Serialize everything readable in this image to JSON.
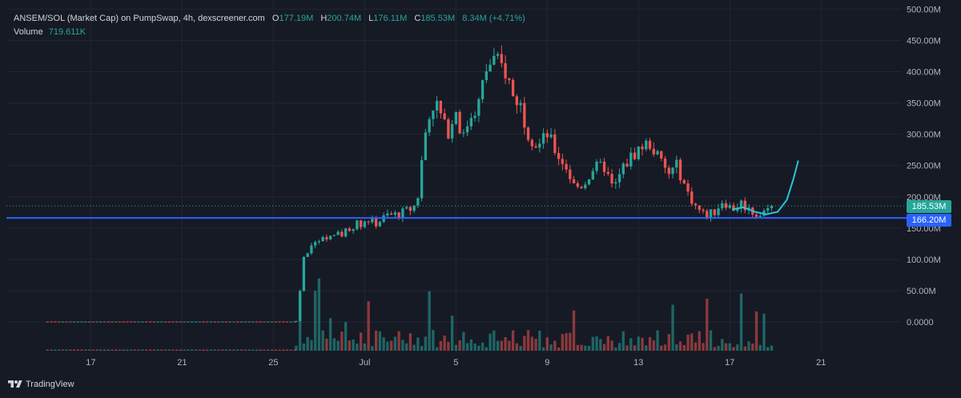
{
  "header": {
    "symbol": "ANSEM/SOL (Market Cap) on PumpSwap, 4h, dexscreener.com",
    "o_key": "O",
    "o_val": "177.19M",
    "h_key": "H",
    "h_val": "200.74M",
    "l_key": "L",
    "l_val": "176.11M",
    "c_key": "C",
    "c_val": "185.53M",
    "change": "8.34M (+4.71%)",
    "volume_key": "Volume",
    "volume_val": "719.611K"
  },
  "brand": "TradingView",
  "labels": {
    "current_price": "185.53M",
    "line_price": "166.20M"
  },
  "colors": {
    "background": "#161a25",
    "up": "#26a69a",
    "down": "#ef5350",
    "hline": "#2962ff",
    "projection": "#26c6da",
    "grid": "#232632",
    "axis_text": "#b2b5be"
  },
  "chart_data": {
    "type": "candlestick",
    "interval": "4h",
    "y_axis": {
      "ticks": [
        0,
        50,
        100,
        150,
        200,
        250,
        300,
        350,
        400,
        450,
        500
      ],
      "tick_labels": [
        "0.0000",
        "50.00M",
        "100.00M",
        "150.00M",
        "200.00M",
        "250.00M",
        "300.00M",
        "350.00M",
        "400.00M",
        "450.00M",
        "500.00M"
      ],
      "unit": "M",
      "range": [
        0,
        500
      ]
    },
    "x_axis": {
      "ticks": [
        {
          "day": 17,
          "label": "17"
        },
        {
          "day": 21,
          "label": "21"
        },
        {
          "day": 25,
          "label": "25"
        },
        {
          "day": 29,
          "label": "Jul"
        },
        {
          "day": 33,
          "label": "5"
        },
        {
          "day": 37,
          "label": "9"
        },
        {
          "day": 41,
          "label": "13"
        },
        {
          "day": 45,
          "label": "17"
        },
        {
          "day": 49,
          "label": "21"
        }
      ],
      "range": [
        13.3,
        52.5
      ]
    },
    "horizontal_line": 166.2,
    "current_price": 185.53,
    "price_path": [
      [
        26.0,
        0
      ],
      [
        26.3,
        100
      ],
      [
        26.6,
        120
      ],
      [
        27.0,
        130
      ],
      [
        27.5,
        135
      ],
      [
        28.0,
        140
      ],
      [
        28.5,
        155
      ],
      [
        29.0,
        160
      ],
      [
        29.5,
        158
      ],
      [
        30.0,
        170
      ],
      [
        30.5,
        172
      ],
      [
        31.0,
        180
      ],
      [
        31.3,
        190
      ],
      [
        31.6,
        290
      ],
      [
        31.9,
        350
      ],
      [
        32.2,
        345
      ],
      [
        32.6,
        300
      ],
      [
        33.0,
        340
      ],
      [
        33.3,
        290
      ],
      [
        33.6,
        330
      ],
      [
        34.0,
        350
      ],
      [
        34.3,
        400
      ],
      [
        34.6,
        420
      ],
      [
        34.9,
        410
      ],
      [
        35.2,
        400
      ],
      [
        35.5,
        360
      ],
      [
        35.8,
        350
      ],
      [
        36.2,
        300
      ],
      [
        36.6,
        280
      ],
      [
        37.0,
        300
      ],
      [
        37.4,
        270
      ],
      [
        37.8,
        250
      ],
      [
        38.2,
        215
      ],
      [
        38.6,
        220
      ],
      [
        39.0,
        245
      ],
      [
        39.5,
        248
      ],
      [
        39.9,
        210
      ],
      [
        40.3,
        245
      ],
      [
        40.7,
        265
      ],
      [
        41.1,
        280
      ],
      [
        41.5,
        285
      ],
      [
        41.9,
        260
      ],
      [
        42.3,
        235
      ],
      [
        42.7,
        250
      ],
      [
        43.1,
        210
      ],
      [
        43.5,
        185
      ],
      [
        43.9,
        170
      ],
      [
        44.3,
        175
      ],
      [
        44.7,
        195
      ],
      [
        45.1,
        180
      ],
      [
        45.5,
        190
      ],
      [
        45.9,
        178
      ],
      [
        46.3,
        170
      ],
      [
        46.6,
        178
      ],
      [
        46.9,
        185.53
      ]
    ],
    "volume": {
      "note": "volume bars at bottom of chart, relative scale",
      "max_value_k": 1000
    },
    "projection_path": [
      [
        45.1,
        180
      ],
      [
        45.6,
        183
      ],
      [
        46.1,
        176
      ],
      [
        46.6,
        172
      ],
      [
        47.1,
        176
      ],
      [
        47.5,
        195
      ],
      [
        47.8,
        230
      ],
      [
        48.0,
        258
      ]
    ]
  }
}
